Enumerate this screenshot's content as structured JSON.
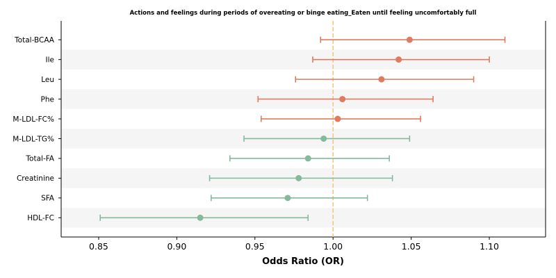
{
  "chart_data": {
    "type": "forest",
    "title": "Actions and feelings during periods of overeating or binge eating_Eaten until feeling uncomfortably full",
    "xlabel": "Odds Ratio (OR)",
    "xlim": [
      0.826,
      1.136
    ],
    "xticks": [
      "0.85",
      "0.90",
      "0.95",
      "1.00",
      "1.05",
      "1.10"
    ],
    "xtick_values": [
      0.85,
      0.9,
      0.95,
      1.0,
      1.05,
      1.1
    ],
    "reference_line": 1.0,
    "reference_color": "#f5c27a",
    "colors": {
      "increase": "#e07b5e",
      "decrease": "#84b99c",
      "band": "#f5f5f5"
    },
    "rows": [
      {
        "label": "Total-BCAA",
        "or": 1.049,
        "lo": 0.992,
        "hi": 1.11,
        "group": "increase"
      },
      {
        "label": "Ile",
        "or": 1.042,
        "lo": 0.987,
        "hi": 1.1,
        "group": "increase"
      },
      {
        "label": "Leu",
        "or": 1.031,
        "lo": 0.976,
        "hi": 1.09,
        "group": "increase"
      },
      {
        "label": "Phe",
        "or": 1.006,
        "lo": 0.952,
        "hi": 1.064,
        "group": "increase"
      },
      {
        "label": "M-LDL-FC%",
        "or": 1.003,
        "lo": 0.954,
        "hi": 1.056,
        "group": "increase"
      },
      {
        "label": "M-LDL-TG%",
        "or": 0.994,
        "lo": 0.943,
        "hi": 1.049,
        "group": "decrease"
      },
      {
        "label": "Total-FA",
        "or": 0.984,
        "lo": 0.934,
        "hi": 1.036,
        "group": "decrease"
      },
      {
        "label": "Creatinine",
        "or": 0.978,
        "lo": 0.921,
        "hi": 1.038,
        "group": "decrease"
      },
      {
        "label": "SFA",
        "or": 0.971,
        "lo": 0.922,
        "hi": 1.022,
        "group": "decrease"
      },
      {
        "label": "HDL-FC",
        "or": 0.915,
        "lo": 0.851,
        "hi": 0.984,
        "group": "decrease"
      }
    ]
  }
}
